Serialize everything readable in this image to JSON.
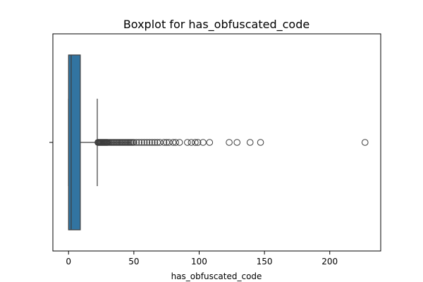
{
  "chart_data": {
    "type": "boxplot",
    "title": "Boxplot for has_obfuscated_code",
    "xlabel": "has_obfuscated_code",
    "ylabel": "",
    "xlim": [
      -12,
      239
    ],
    "xticks": [
      0,
      50,
      100,
      150,
      200
    ],
    "xtick_labels": [
      "0",
      "50",
      "100",
      "150",
      "200"
    ],
    "grid": false,
    "colors": {
      "box_fill": "#3274a1",
      "lines": "#3d3d3d"
    },
    "box": {
      "whisker_low": 0,
      "q1": 0,
      "median": 2,
      "q3": 9,
      "whisker_high": 22
    },
    "outliers": [
      22.5,
      23,
      23.5,
      24,
      24.5,
      25,
      25.5,
      26,
      26.5,
      27,
      27.5,
      28,
      28.5,
      29,
      29.5,
      30,
      31,
      32,
      33,
      34,
      35,
      36,
      37,
      38,
      39,
      40,
      41,
      42,
      43,
      44,
      45,
      46,
      47,
      48,
      49,
      50,
      52,
      54,
      56,
      58,
      60,
      62,
      64,
      66,
      68,
      70,
      73,
      75,
      77,
      80,
      82,
      85,
      91,
      94,
      97,
      99,
      103,
      108,
      123,
      129,
      139,
      147,
      227
    ]
  }
}
